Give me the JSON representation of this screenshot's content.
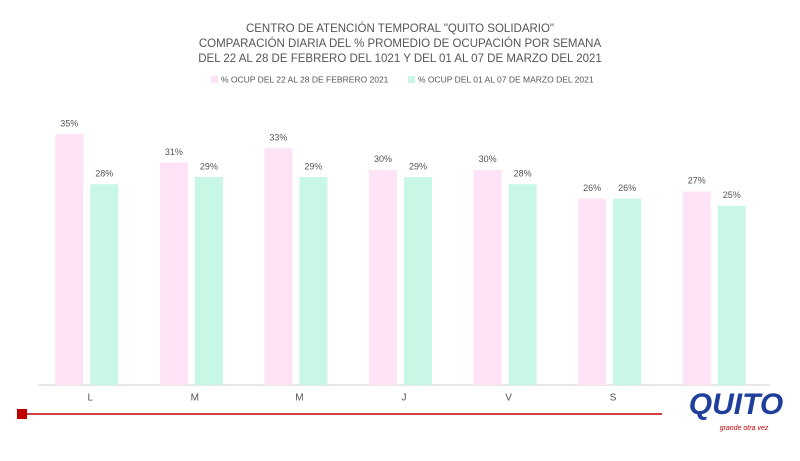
{
  "chart_data": {
    "type": "bar",
    "title": [
      "CENTRO DE ATENCIÓN TEMPORAL \"QUITO SOLIDARIO\"",
      "COMPARACIÓN  DIARIA DEL %  PROMEDIO DE OCUPACIÓN POR SEMANA",
      "DEL 22 AL 28 DE FEBRERO DEL 1021 Y DEL 01 AL 07 DE MARZO DEL 2021"
    ],
    "categories": [
      "L",
      "M",
      "M",
      "J",
      "V",
      "S",
      null
    ],
    "series": [
      {
        "name": "% OCUP DEL 22 AL 28 DE FEBRERO 2021",
        "color": "#fde3f5",
        "values": [
          35,
          31,
          33,
          30,
          30,
          26,
          27
        ],
        "value_labels": [
          "35%",
          "31%",
          "33%",
          "30%",
          "30%",
          "26%",
          "27%"
        ]
      },
      {
        "name": "% OCUP DEL 01 AL 07 DE MARZO DEL 2021",
        "color": "#c9f7e6",
        "values": [
          28,
          29,
          29,
          29,
          28,
          26,
          25
        ],
        "value_labels": [
          "28%",
          "29%",
          "29%",
          "29%",
          "28%",
          "26%",
          "25%"
        ]
      }
    ],
    "ylim": [
      0,
      35
    ],
    "legend": "top"
  },
  "logo": {
    "text": "QUITO",
    "tagline": "grande otra vez"
  }
}
